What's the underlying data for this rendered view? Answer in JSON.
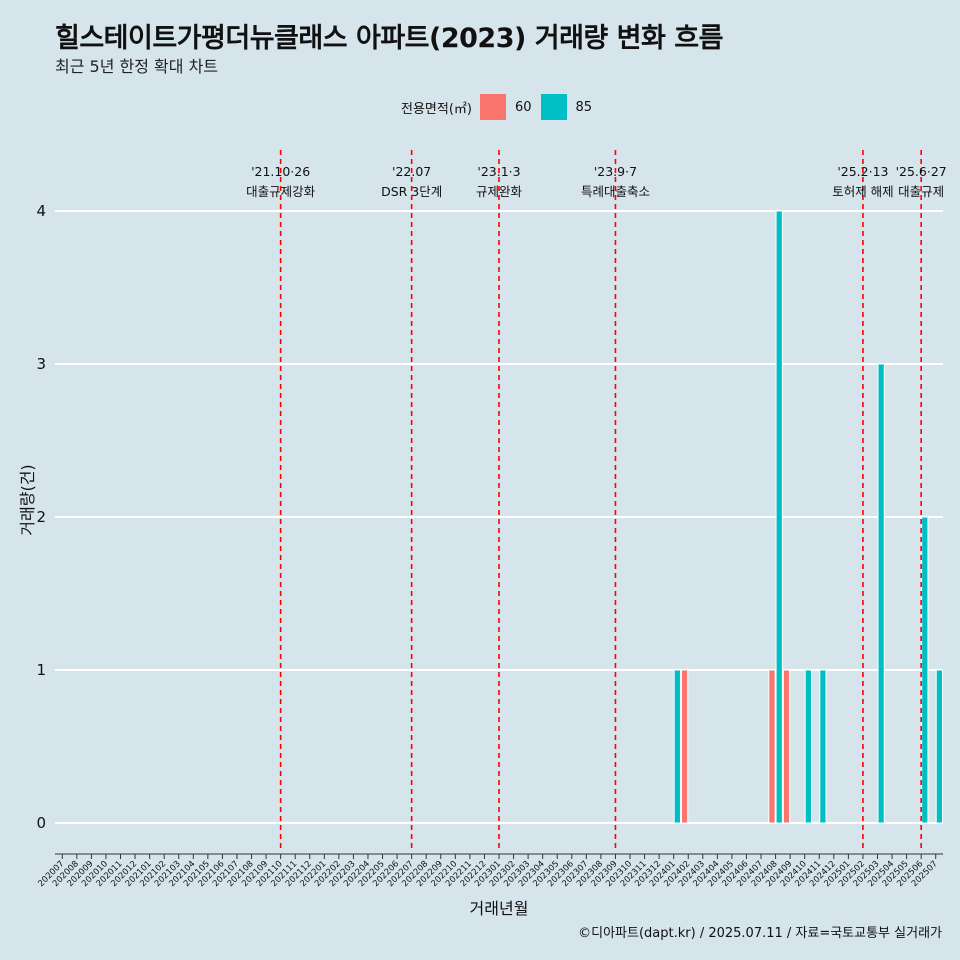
{
  "page": {
    "title": "힐스테이트가평더뉴클래스 아파트(2023) 거래량 변화 흐름",
    "subtitle": "최근 5년 한정 확대 차트",
    "caption": "©디아파트(dapt.kr) / 2025.07.11 / 자료=국토교통부 실거래가"
  },
  "legend": {
    "title": "전용면적(㎡)",
    "items": [
      {
        "label": "60",
        "color": "#f8766d"
      },
      {
        "label": "85",
        "color": "#00bfc4"
      }
    ]
  },
  "chart_data": {
    "type": "bar",
    "title": "힐스테이트가평더뉴클래스 아파트(2023) 거래량 변화 흐름",
    "subtitle": "최근 5년 한정 확대 차트",
    "xlabel": "거래년월",
    "ylabel": "거래량(건)",
    "ylim": [
      0,
      4
    ],
    "yticks": [
      0,
      1,
      2,
      3,
      4
    ],
    "grid": true,
    "legend_position": "top",
    "categories": [
      "202007",
      "202008",
      "202009",
      "202010",
      "202011",
      "202012",
      "202101",
      "202102",
      "202103",
      "202104",
      "202105",
      "202106",
      "202107",
      "202108",
      "202109",
      "202110",
      "202111",
      "202112",
      "202201",
      "202202",
      "202203",
      "202204",
      "202205",
      "202206",
      "202207",
      "202208",
      "202209",
      "202210",
      "202211",
      "202212",
      "202301",
      "202302",
      "202303",
      "202304",
      "202305",
      "202306",
      "202307",
      "202308",
      "202309",
      "202310",
      "202311",
      "202312",
      "202401",
      "202402",
      "202403",
      "202404",
      "202405",
      "202406",
      "202407",
      "202408",
      "202409",
      "202410",
      "202411",
      "202412",
      "202501",
      "202502",
      "202503",
      "202504",
      "202505",
      "202506",
      "202507"
    ],
    "bars": [
      {
        "x": "202401",
        "series": "85",
        "value": 1
      },
      {
        "x": "202402",
        "series": "60",
        "value": 1
      },
      {
        "x": "202408",
        "series": "60",
        "value": 1
      },
      {
        "x": "202408",
        "series": "85",
        "value": 4
      },
      {
        "x": "202409",
        "series": "60",
        "value": 1
      },
      {
        "x": "202410",
        "series": "85",
        "value": 1
      },
      {
        "x": "202411",
        "series": "85",
        "value": 1
      },
      {
        "x": "202503",
        "series": "85",
        "value": 3
      },
      {
        "x": "202506",
        "series": "85",
        "value": 2
      },
      {
        "x": "202507",
        "series": "85",
        "value": 1
      }
    ],
    "series": [
      {
        "name": "60",
        "color": "#f8766d"
      },
      {
        "name": "85",
        "color": "#00bfc4"
      }
    ],
    "annotations": [
      {
        "x": "202110",
        "date": "'21.10·26",
        "label": "대출규제강화"
      },
      {
        "x": "202207",
        "date": "'22.07",
        "label": "DSR 3단계"
      },
      {
        "x": "202301",
        "date": "'23.1·3",
        "label": "규제완화"
      },
      {
        "x": "202309",
        "date": "'23.9·7",
        "label": "특례대출축소"
      },
      {
        "x": "202502",
        "date": "'25.2·13",
        "label": "토허제 해제"
      },
      {
        "x": "202506",
        "date": "'25.6·27",
        "label": "대출규제"
      }
    ],
    "annotation_color": "#ff0000"
  }
}
